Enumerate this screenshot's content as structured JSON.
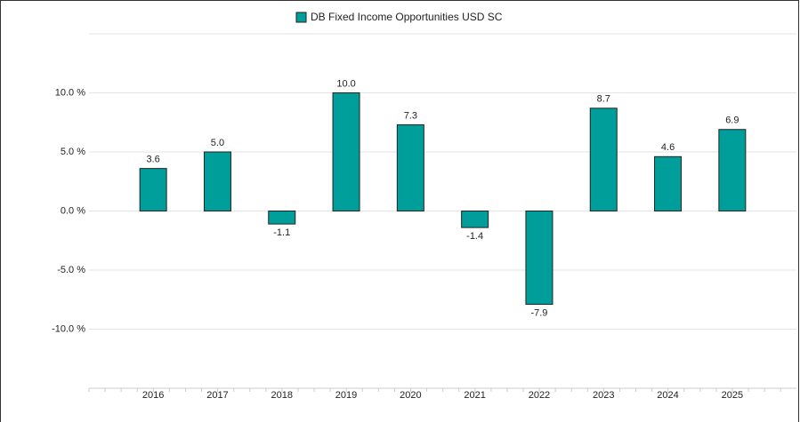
{
  "chart_data": {
    "type": "bar",
    "legend": "DB Fixed Income Opportunities USD SC",
    "categories": [
      "2016",
      "2017",
      "2018",
      "2019",
      "2020",
      "2021",
      "2022",
      "2023",
      "2024",
      "2025"
    ],
    "values": [
      3.6,
      5.0,
      -1.1,
      10.0,
      7.3,
      -1.4,
      -7.9,
      8.7,
      4.6,
      6.9
    ],
    "value_labels": [
      "3.6",
      "5.0",
      "-1.1",
      "10.0",
      "7.3",
      "-1.4",
      "-7.9",
      "8.7",
      "4.6",
      "6.9"
    ],
    "color": "#009e9a",
    "ylim": [
      -15,
      15
    ],
    "yticks": [
      {
        "value": 10,
        "label": "10.0 %"
      },
      {
        "value": 5,
        "label": "5.0 %"
      },
      {
        "value": 0,
        "label": "0.0 %"
      },
      {
        "value": -5,
        "label": "-5.0 %"
      },
      {
        "value": -10,
        "label": "-10.0 %"
      }
    ],
    "grid": true
  }
}
